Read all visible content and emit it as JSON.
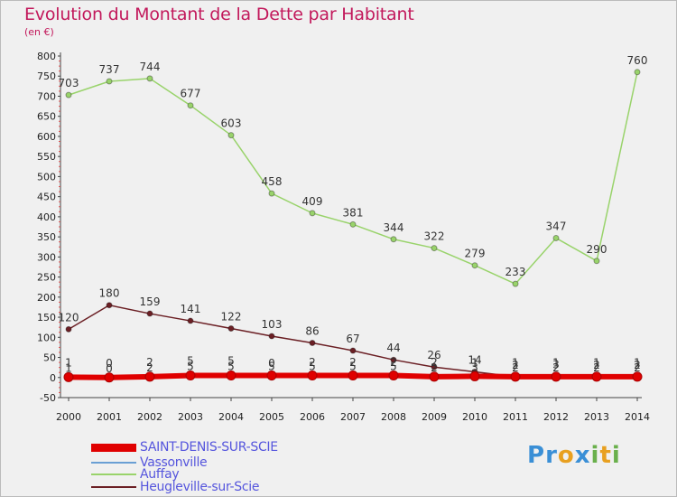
{
  "header": {
    "title": "Evolution du Montant de la Dette par Habitant",
    "unit": "(en €)"
  },
  "logo": {
    "letters": [
      "P",
      "r",
      "o",
      "x",
      "i",
      "t",
      "i"
    ],
    "colors": [
      "#3a8fd6",
      "#3a8fd6",
      "#e8a020",
      "#3a8fd6",
      "#6ab04c",
      "#e8a020",
      "#6ab04c"
    ]
  },
  "chart_data": {
    "type": "line",
    "title": "Evolution du Montant de la Dette par Habitant",
    "ylabel": "(en €)",
    "x": [
      2000,
      2001,
      2002,
      2003,
      2004,
      2005,
      2006,
      2007,
      2008,
      2009,
      2010,
      2011,
      2012,
      2013,
      2014
    ],
    "ylim": [
      -50,
      800
    ],
    "yticks": [
      -50,
      0,
      50,
      100,
      150,
      200,
      250,
      300,
      350,
      400,
      450,
      500,
      550,
      600,
      650,
      700,
      750,
      800
    ],
    "grid": false,
    "legend_position": "bottom-left",
    "series": [
      {
        "name": "SAINT-DENIS-SUR-SCIE",
        "color": "#e00000",
        "values": [
          1,
          0,
          2,
          5,
          5,
          5,
          5,
          5,
          5,
          2,
          3,
          2,
          2,
          2,
          2
        ]
      },
      {
        "name": "Vassonville",
        "color": "#6a9fd4",
        "values": [
          1,
          0,
          2,
          5,
          5,
          0,
          2,
          2,
          2,
          2,
          1,
          1,
          1,
          1,
          1
        ]
      },
      {
        "name": "Auffay",
        "color": "#99d36b",
        "values": [
          703,
          737,
          744,
          677,
          603,
          458,
          409,
          381,
          344,
          322,
          279,
          233,
          347,
          290,
          760
        ]
      },
      {
        "name": "Heugleville-sur-Scie",
        "color": "#6b1f24",
        "values": [
          120,
          180,
          159,
          141,
          122,
          103,
          86,
          67,
          44,
          26,
          14,
          2,
          3,
          2,
          2
        ]
      }
    ]
  }
}
